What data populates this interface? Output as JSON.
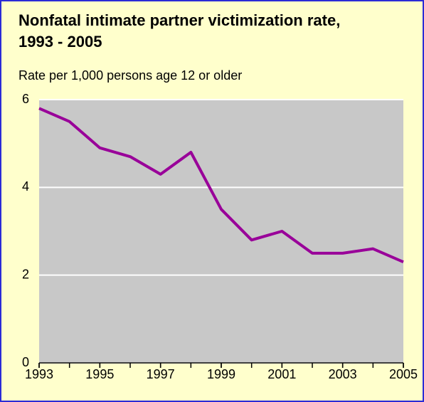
{
  "chart_data": {
    "type": "line",
    "title": "Nonfatal intimate partner victimization rate, 1993 - 2005",
    "subtitle": "Rate per 1,000 persons age 12 or older",
    "x": [
      1993,
      1994,
      1995,
      1996,
      1997,
      1998,
      1999,
      2000,
      2001,
      2002,
      2003,
      2004,
      2005
    ],
    "series": [
      {
        "color": "#990099",
        "values": [
          5.8,
          5.5,
          4.9,
          4.7,
          4.3,
          4.8,
          3.5,
          2.8,
          3.0,
          2.5,
          2.5,
          2.6,
          2.3
        ]
      }
    ],
    "xlim": [
      1993,
      2005
    ],
    "xticks": [
      1993,
      1995,
      1997,
      1999,
      2001,
      2003,
      2005
    ],
    "ylim": [
      0,
      6
    ],
    "yticks": [
      0,
      2,
      4,
      6
    ],
    "grid": true
  }
}
